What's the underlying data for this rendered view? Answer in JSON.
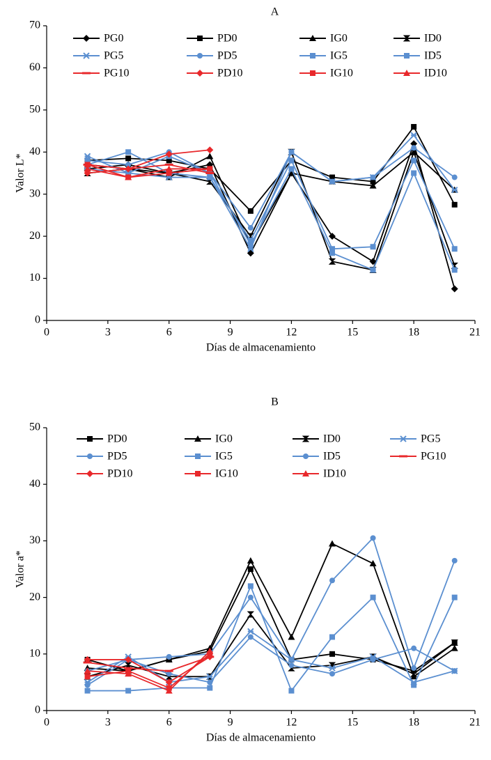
{
  "chart_data": [
    {
      "type": "line",
      "title": "A",
      "x_label": "Días de almacenamiento",
      "y_label": "Valor L*",
      "x": [
        2,
        4,
        6,
        8,
        10,
        12,
        14,
        16,
        18,
        20
      ],
      "xlim": [
        0,
        21
      ],
      "xticks": [
        0,
        3,
        6,
        9,
        12,
        15,
        18,
        21
      ],
      "ylim": [
        0,
        70
      ],
      "yticks": [
        0,
        10,
        20,
        30,
        40,
        50,
        60,
        70
      ],
      "series": [
        {
          "name": "PG0",
          "color": "#000000",
          "marker": "diamond",
          "values": [
            36,
            37,
            35,
            37,
            16,
            35,
            20,
            14,
            42,
            7.5
          ]
        },
        {
          "name": "PD0",
          "color": "#000000",
          "marker": "square",
          "values": [
            38,
            38.5,
            38,
            36,
            26,
            38,
            34,
            33,
            46,
            27.5
          ]
        },
        {
          "name": "IG0",
          "color": "#000000",
          "marker": "triangle",
          "values": [
            37,
            36,
            34,
            39,
            18,
            35,
            33,
            32,
            40,
            31
          ]
        },
        {
          "name": "ID0",
          "color": "#000000",
          "marker": "hourglass",
          "values": [
            35,
            36,
            35,
            33,
            20,
            40,
            14,
            12,
            40,
            13
          ]
        },
        {
          "name": "PG5",
          "color": "#5b8fd0",
          "marker": "x",
          "values": [
            39,
            35,
            34,
            34,
            17,
            40,
            33,
            34,
            44,
            31
          ]
        },
        {
          "name": "PD5",
          "color": "#5b8fd0",
          "marker": "circle",
          "values": [
            38,
            37,
            40,
            35,
            22,
            40,
            33,
            34,
            41,
            34
          ]
        },
        {
          "name": "IG5",
          "color": "#5b8fd0",
          "marker": "square",
          "values": [
            37,
            40,
            35,
            34,
            19,
            38,
            17,
            17.5,
            38,
            17
          ]
        },
        {
          "name": "ID5",
          "color": "#5b8fd0",
          "marker": "square",
          "values": [
            36,
            35,
            39,
            35,
            18,
            36,
            16,
            12,
            35,
            12
          ]
        },
        {
          "name": "PG10",
          "color": "#e8282b",
          "marker": "dash",
          "values": [
            37,
            36,
            37,
            35,
            null,
            null,
            null,
            null,
            null,
            null
          ]
        },
        {
          "name": "PD10",
          "color": "#e8282b",
          "marker": "diamond",
          "values": [
            35,
            36,
            39.5,
            40.5,
            null,
            null,
            null,
            null,
            null,
            null
          ]
        },
        {
          "name": "IG10",
          "color": "#e8282b",
          "marker": "square",
          "values": [
            37,
            34,
            35,
            36,
            null,
            null,
            null,
            null,
            null,
            null
          ]
        },
        {
          "name": "ID10",
          "color": "#e8282b",
          "marker": "triangle",
          "values": [
            36,
            34,
            36,
            36,
            null,
            null,
            null,
            null,
            null,
            null
          ]
        }
      ]
    },
    {
      "type": "line",
      "title": "B",
      "x_label": "Días de almacenamiento",
      "y_label": "Valor a*",
      "x": [
        2,
        4,
        6,
        8,
        10,
        12,
        14,
        16,
        18,
        20
      ],
      "xlim": [
        0,
        21
      ],
      "xticks": [
        0,
        3,
        6,
        9,
        12,
        15,
        18,
        21
      ],
      "ylim": [
        0,
        50
      ],
      "yticks": [
        0,
        10,
        20,
        30,
        40,
        50
      ],
      "series": [
        {
          "name": "PD0",
          "color": "#000000",
          "marker": "square",
          "values": [
            9,
            7,
            9,
            10.5,
            25,
            9,
            10,
            9,
            7,
            12
          ]
        },
        {
          "name": "IG0",
          "color": "#000000",
          "marker": "triangle",
          "values": [
            7.5,
            7,
            9,
            11,
            26.5,
            13,
            29.5,
            26,
            6,
            11
          ]
        },
        {
          "name": "ID0",
          "color": "#000000",
          "marker": "hourglass",
          "values": [
            6,
            8,
            6,
            6,
            17,
            7.5,
            8,
            9.5,
            6.5,
            12
          ]
        },
        {
          "name": "PG5",
          "color": "#5b8fd0",
          "marker": "x",
          "values": [
            5,
            9.5,
            5,
            6,
            14,
            9,
            7.5,
            9.5,
            5,
            7
          ]
        },
        {
          "name": "PD5",
          "color": "#5b8fd0",
          "marker": "circle",
          "values": [
            7,
            9,
            9.5,
            10,
            20,
            9,
            23,
            30.5,
            7.5,
            26.5
          ]
        },
        {
          "name": "IG5",
          "color": "#5b8fd0",
          "marker": "square",
          "values": [
            3.5,
            3.5,
            4,
            4,
            22,
            3.5,
            13,
            20,
            4.5,
            20
          ]
        },
        {
          "name": "ID5",
          "color": "#5b8fd0",
          "marker": "circle",
          "values": [
            4.5,
            9,
            6.5,
            5,
            13,
            8,
            6.5,
            9,
            11,
            7
          ]
        },
        {
          "name": "PG10",
          "color": "#e8282b",
          "marker": "dash",
          "values": [
            8.5,
            7.5,
            7,
            9.5,
            null,
            null,
            null,
            null,
            null,
            null
          ]
        },
        {
          "name": "PD10",
          "color": "#e8282b",
          "marker": "diamond",
          "values": [
            9,
            9,
            5,
            9.5,
            null,
            null,
            null,
            null,
            null,
            null
          ]
        },
        {
          "name": "IG10",
          "color": "#e8282b",
          "marker": "square",
          "values": [
            6,
            7,
            4,
            10,
            null,
            null,
            null,
            null,
            null,
            null
          ]
        },
        {
          "name": "ID10",
          "color": "#e8282b",
          "marker": "triangle",
          "values": [
            7,
            6.5,
            3.5,
            10.5,
            null,
            null,
            null,
            null,
            null,
            null
          ]
        }
      ]
    }
  ]
}
